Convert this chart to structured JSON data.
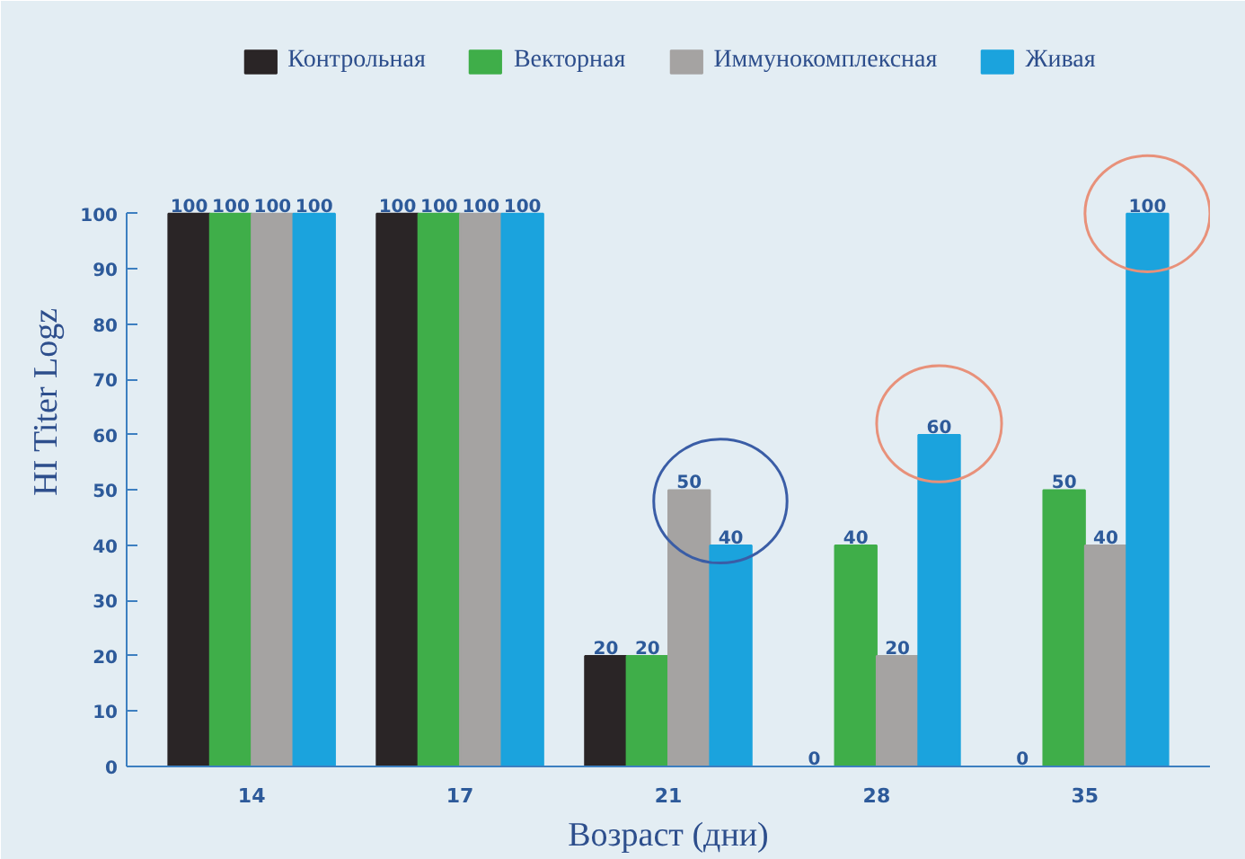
{
  "chart_data": {
    "type": "bar",
    "xlabel": "Возраст (дни)",
    "ylabel": "HI Titer Logz",
    "categories": [
      "14",
      "17",
      "21",
      "28",
      "35"
    ],
    "series": [
      {
        "name": "Контрольная",
        "color": "#2a2526",
        "values": [
          100,
          100,
          20,
          0,
          0
        ]
      },
      {
        "name": "Векторная",
        "color": "#3fae49",
        "values": [
          100,
          100,
          20,
          40,
          50
        ]
      },
      {
        "name": "Иммунокомплексная",
        "color": "#a5a3a2",
        "values": [
          100,
          100,
          50,
          20,
          40
        ]
      },
      {
        "name": "Живая",
        "color": "#1ba3dd",
        "values": [
          100,
          100,
          40,
          60,
          100
        ]
      }
    ],
    "ylim": [
      0,
      100
    ],
    "yticks": [
      0,
      10,
      20,
      30,
      40,
      50,
      60,
      70,
      80,
      90,
      100
    ],
    "data_labels": true,
    "grid": false,
    "legend": "top"
  }
}
